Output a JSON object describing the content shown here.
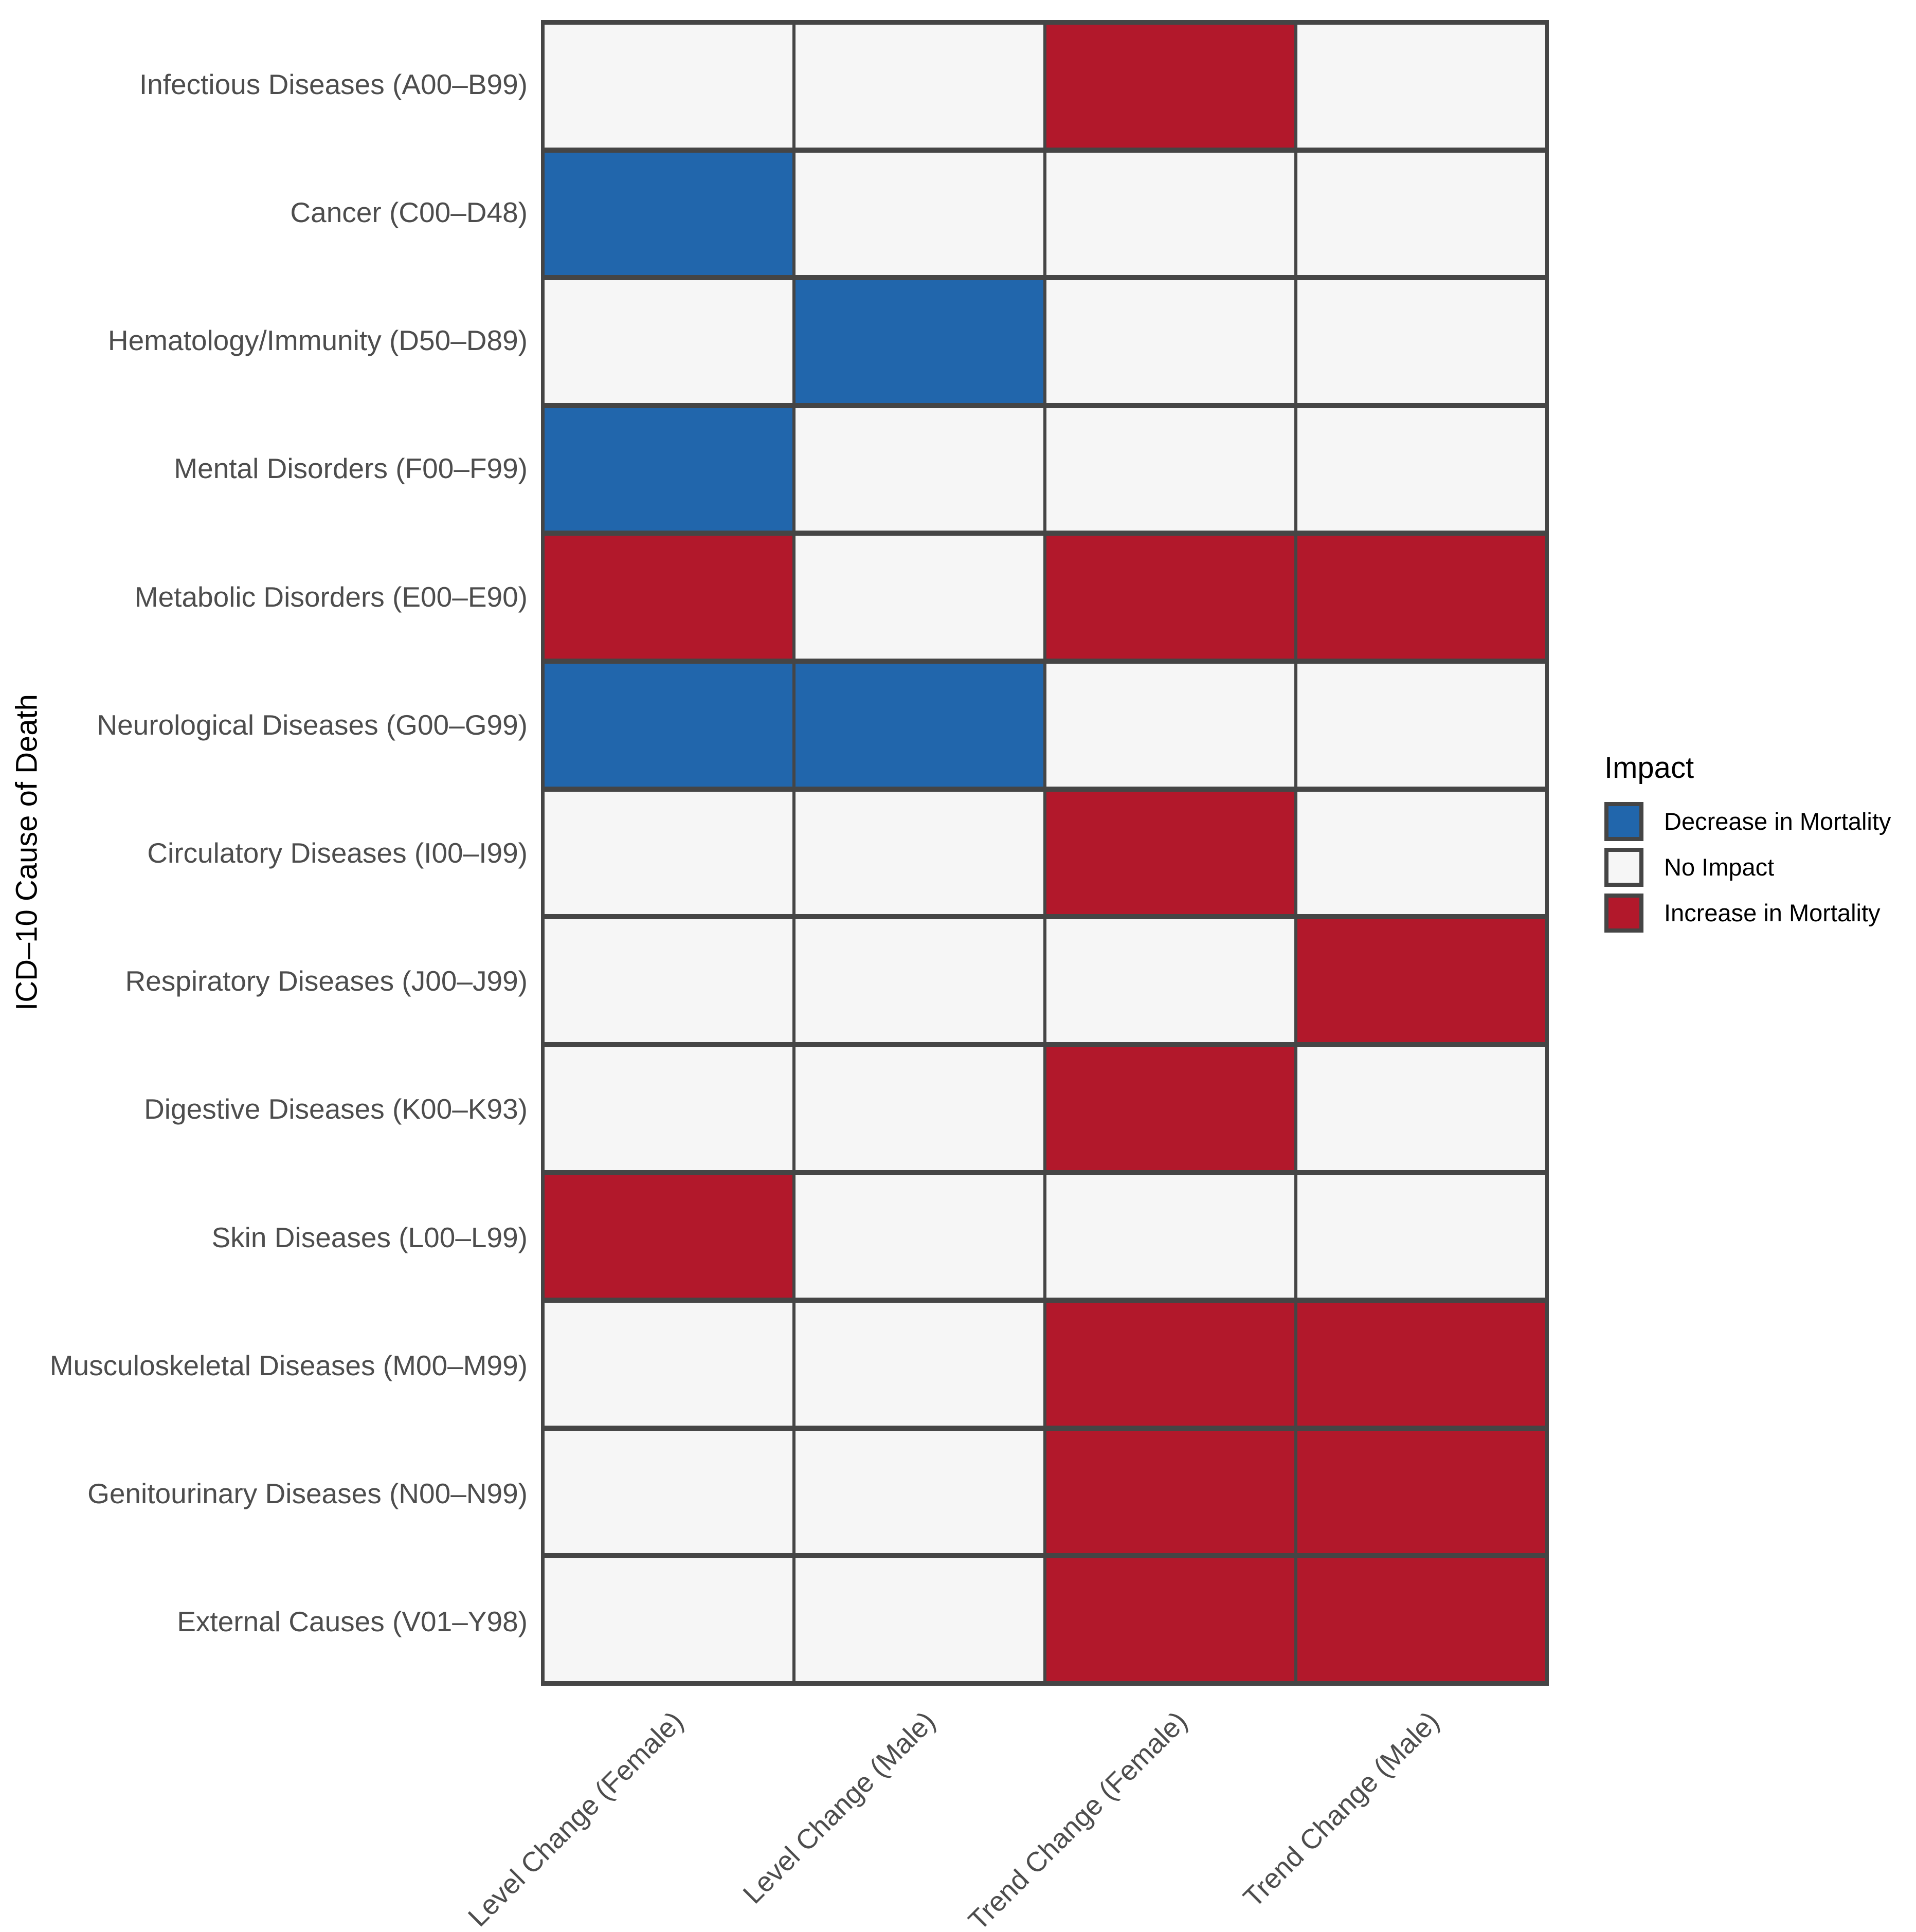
{
  "chart_data": {
    "type": "heatmap",
    "title": "",
    "xlabel": "",
    "ylabel": "ICD–10 Cause of Death",
    "x_categories": [
      "Level Change (Female)",
      "Level Change (Male)",
      "Trend Change (Female)",
      "Trend Change (Male)"
    ],
    "y_categories": [
      "Infectious Diseases (A00–B99)",
      "Cancer (C00–D48)",
      "Hematology/Immunity (D50–D89)",
      "Mental Disorders (F00–F99)",
      "Metabolic Disorders (E00–E90)",
      "Neurological Diseases (G00–G99)",
      "Circulatory Diseases (I00–I99)",
      "Respiratory Diseases (J00–J99)",
      "Digestive Diseases (K00–K93)",
      "Skin Diseases (L00–L99)",
      "Musculoskeletal Diseases (M00–M99)",
      "Genitourinary Diseases (N00–N99)",
      "External Causes (V01–Y98)"
    ],
    "values": [
      [
        "none",
        "none",
        "increase",
        "none"
      ],
      [
        "decrease",
        "none",
        "none",
        "none"
      ],
      [
        "none",
        "decrease",
        "none",
        "none"
      ],
      [
        "decrease",
        "none",
        "none",
        "none"
      ],
      [
        "increase",
        "none",
        "increase",
        "increase"
      ],
      [
        "decrease",
        "decrease",
        "none",
        "none"
      ],
      [
        "none",
        "none",
        "increase",
        "none"
      ],
      [
        "none",
        "none",
        "none",
        "increase"
      ],
      [
        "none",
        "none",
        "increase",
        "none"
      ],
      [
        "increase",
        "none",
        "none",
        "none"
      ],
      [
        "none",
        "none",
        "increase",
        "increase"
      ],
      [
        "none",
        "none",
        "increase",
        "increase"
      ],
      [
        "none",
        "none",
        "increase",
        "increase"
      ]
    ],
    "colors": {
      "decrease": "#2166AC",
      "none": "#F6F6F6",
      "increase": "#B2182B",
      "tile_border": "#454545",
      "tick_text": "#4D4D4D"
    },
    "legend": {
      "title": "Impact",
      "position": "right",
      "entries": [
        {
          "key": "decrease",
          "label": "Decrease in Mortality"
        },
        {
          "key": "none",
          "label": "No Impact"
        },
        {
          "key": "increase",
          "label": "Increase in Mortality"
        }
      ]
    },
    "grid": "off",
    "axis_ticks": "off"
  }
}
